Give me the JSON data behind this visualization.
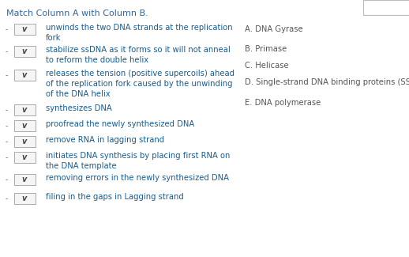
{
  "title": "Match Column A with Column B.",
  "title_color": "#336699",
  "background_color": "#ffffff",
  "col_a_items": [
    "unwinds the two DNA strands at the replication\nfork",
    "stabilize ssDNA as it forms so it will not anneal\nto reform the double helix",
    "releases the tension (positive supercoils) ahead\nof the replication fork caused by the unwinding\nof the DNA helix",
    "synthesizes DNA",
    "proofread the newly synthesized DNA",
    "remove RNA in lagging strand",
    "initiates DNA synthesis by placing first RNA on\nthe DNA template",
    "removing errors in the newly synthesized DNA",
    "filing in the gaps in Lagging strand"
  ],
  "col_b_items": [
    "A. DNA Gyrase",
    "B. Primase",
    "C. Helicase",
    "D. Single-strand DNA binding proteins (SSB)",
    "E. DNA polymerase"
  ],
  "col_a_text_color": "#1a5c8a",
  "col_b_text_color": "#555555",
  "title_fontsize": 8.0,
  "item_fontsize": 7.2,
  "col_b_fontsize": 7.2,
  "dash_color": "#777777",
  "box_edge_color": "#aaaaaa",
  "box_face_color": "#f5f5f5",
  "chevron_color": "#444444",
  "corner_box_edge": "#bbbbbb"
}
